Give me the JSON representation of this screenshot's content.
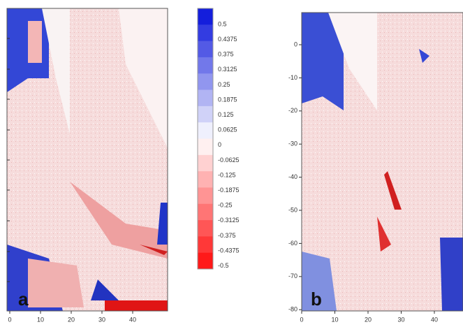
{
  "panels": [
    {
      "label": "a",
      "x_ticks": [
        "0",
        "10",
        "20",
        "30",
        "40"
      ],
      "y_ticks": []
    },
    {
      "label": "b",
      "x_ticks": [
        "0",
        "10",
        "20",
        "30",
        "40"
      ],
      "y_ticks": [
        "0",
        "-10",
        "-20",
        "-30",
        "-40",
        "-50",
        "-60",
        "-70",
        "-80"
      ]
    }
  ],
  "colorbar": {
    "labels": [
      "0.5",
      "0.4375",
      "0.375",
      "0.3125",
      "0.25",
      "0.1875",
      "0.125",
      "0.0625",
      "0",
      "-0.0625",
      "-0.125",
      "-0.1875",
      "-0.25",
      "-0.3125",
      "-0.375",
      "-0.4375",
      "-0.5"
    ]
  }
}
